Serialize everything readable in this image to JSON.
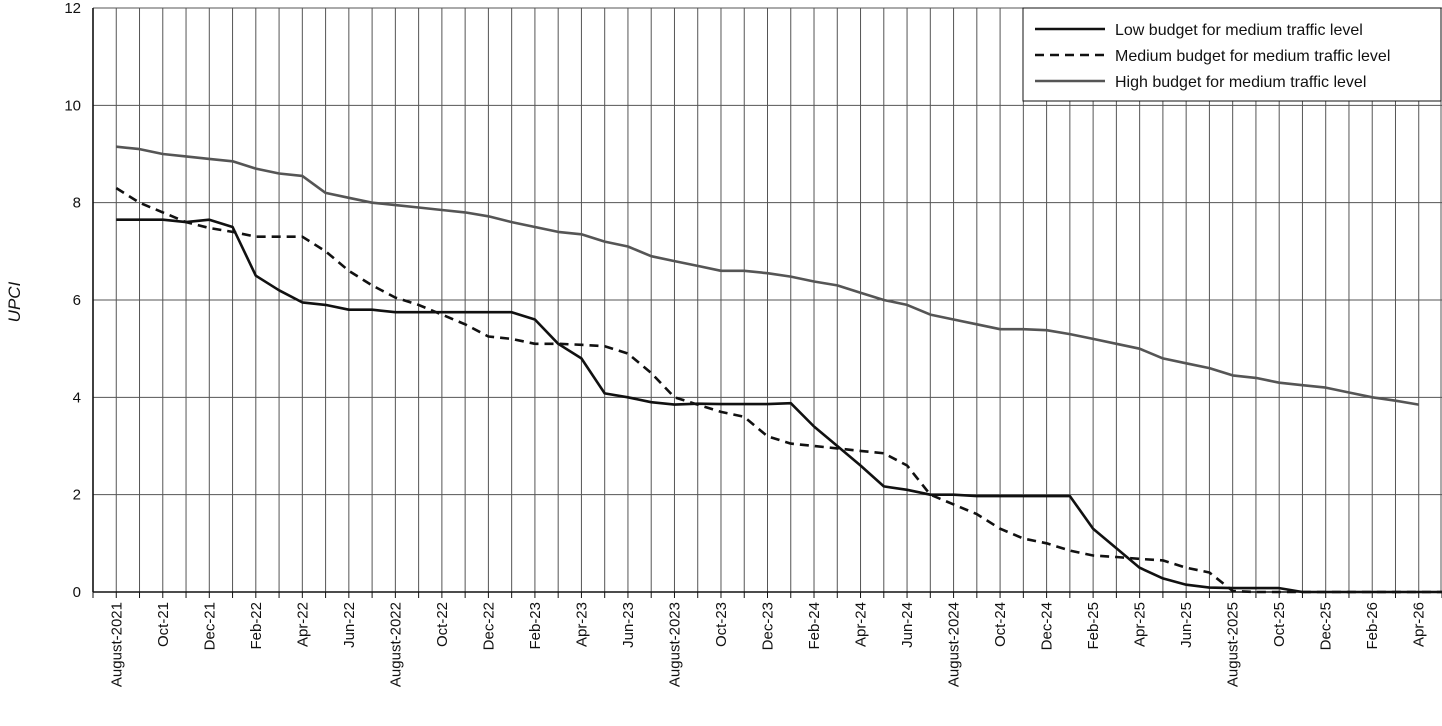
{
  "chart_data": {
    "type": "line",
    "title": "",
    "xlabel": "",
    "ylabel": "UPCI",
    "ylim": [
      0,
      12
    ],
    "yticks": [
      0,
      2,
      4,
      6,
      8,
      10,
      12
    ],
    "grid": true,
    "legend_position": "top-right",
    "x_tick_labels": [
      "August-2021",
      "Oct-21",
      "Dec-21",
      "Feb-22",
      "Apr-22",
      "Jun-22",
      "August-2022",
      "Oct-22",
      "Dec-22",
      "Feb-23",
      "Apr-23",
      "Jun-23",
      "August-2023",
      "Oct-23",
      "Dec-23",
      "Feb-24",
      "Apr-24",
      "Jun-24",
      "August-2024",
      "Oct-24",
      "Dec-24",
      "Feb-25",
      "Apr-25",
      "Jun-25",
      "August-2025",
      "Oct-25",
      "Dec-25",
      "Feb-26",
      "Apr-26"
    ],
    "x_months": [
      0,
      2,
      4,
      6,
      8,
      10,
      12,
      14,
      16,
      18,
      20,
      22,
      24,
      26,
      28,
      30,
      32,
      34,
      36,
      38,
      40,
      42,
      44,
      46,
      48,
      50,
      52,
      54,
      56
    ],
    "x_range_months": [
      -1,
      57
    ],
    "series": [
      {
        "name": "Low budget for medium traffic level",
        "style": "solid",
        "color": "#111111",
        "points": [
          [
            0,
            7.65
          ],
          [
            1,
            7.65
          ],
          [
            2,
            7.65
          ],
          [
            3,
            7.6
          ],
          [
            4,
            7.65
          ],
          [
            5,
            7.5
          ],
          [
            6,
            6.5
          ],
          [
            7,
            6.2
          ],
          [
            8,
            5.95
          ],
          [
            9,
            5.9
          ],
          [
            10,
            5.8
          ],
          [
            11,
            5.8
          ],
          [
            12,
            5.75
          ],
          [
            13,
            5.75
          ],
          [
            14,
            5.75
          ],
          [
            15,
            5.75
          ],
          [
            16,
            5.75
          ],
          [
            17,
            5.75
          ],
          [
            18,
            5.6
          ],
          [
            19,
            5.1
          ],
          [
            20,
            4.8
          ],
          [
            21,
            4.08
          ],
          [
            22,
            4.0
          ],
          [
            23,
            3.9
          ],
          [
            24,
            3.85
          ],
          [
            25,
            3.87
          ],
          [
            26,
            3.86
          ],
          [
            27,
            3.86
          ],
          [
            28,
            3.86
          ],
          [
            29,
            3.88
          ],
          [
            30,
            3.4
          ],
          [
            31,
            3.0
          ],
          [
            32,
            2.6
          ],
          [
            33,
            2.17
          ],
          [
            34,
            2.1
          ],
          [
            35,
            2.0
          ],
          [
            36,
            2.0
          ],
          [
            37,
            1.97
          ],
          [
            38,
            1.97
          ],
          [
            39,
            1.97
          ],
          [
            40,
            1.97
          ],
          [
            41,
            1.97
          ],
          [
            42,
            1.3
          ],
          [
            43,
            0.9
          ],
          [
            44,
            0.5
          ],
          [
            45,
            0.28
          ],
          [
            46,
            0.15
          ],
          [
            47,
            0.09
          ],
          [
            48,
            0.08
          ],
          [
            49,
            0.08
          ],
          [
            50,
            0.08
          ],
          [
            51,
            0.0
          ],
          [
            52,
            0.0
          ],
          [
            53,
            0.0
          ],
          [
            54,
            0.0
          ],
          [
            55,
            0.0
          ],
          [
            56,
            0.0
          ],
          [
            57,
            0.0
          ]
        ]
      },
      {
        "name": "Medium budget for medium traffic level",
        "style": "dashed",
        "color": "#111111",
        "points": [
          [
            0,
            8.3
          ],
          [
            1,
            8.0
          ],
          [
            2,
            7.8
          ],
          [
            3,
            7.6
          ],
          [
            4,
            7.48
          ],
          [
            5,
            7.4
          ],
          [
            6,
            7.3
          ],
          [
            7,
            7.3
          ],
          [
            8,
            7.3
          ],
          [
            9,
            7.0
          ],
          [
            10,
            6.6
          ],
          [
            11,
            6.3
          ],
          [
            12,
            6.05
          ],
          [
            13,
            5.9
          ],
          [
            14,
            5.7
          ],
          [
            15,
            5.5
          ],
          [
            16,
            5.25
          ],
          [
            17,
            5.2
          ],
          [
            18,
            5.1
          ],
          [
            19,
            5.1
          ],
          [
            20,
            5.08
          ],
          [
            21,
            5.05
          ],
          [
            22,
            4.9
          ],
          [
            23,
            4.5
          ],
          [
            24,
            4.0
          ],
          [
            25,
            3.85
          ],
          [
            26,
            3.7
          ],
          [
            27,
            3.6
          ],
          [
            28,
            3.2
          ],
          [
            29,
            3.05
          ],
          [
            30,
            3.0
          ],
          [
            31,
            2.95
          ],
          [
            32,
            2.9
          ],
          [
            33,
            2.85
          ],
          [
            34,
            2.6
          ],
          [
            35,
            2.0
          ],
          [
            36,
            1.8
          ],
          [
            37,
            1.6
          ],
          [
            38,
            1.3
          ],
          [
            39,
            1.1
          ],
          [
            40,
            1.0
          ],
          [
            41,
            0.85
          ],
          [
            42,
            0.75
          ],
          [
            43,
            0.72
          ],
          [
            44,
            0.68
          ],
          [
            45,
            0.65
          ],
          [
            46,
            0.5
          ],
          [
            47,
            0.4
          ],
          [
            48,
            0.02
          ],
          [
            49,
            0.0
          ],
          [
            50,
            0.0
          ],
          [
            51,
            0.0
          ],
          [
            52,
            0.0
          ],
          [
            53,
            0.0
          ],
          [
            54,
            0.0
          ],
          [
            55,
            0.0
          ],
          [
            56,
            0.0
          ],
          [
            57,
            0.0
          ]
        ]
      },
      {
        "name": "High budget for medium traffic level",
        "style": "solid",
        "color": "#555555",
        "points": [
          [
            0,
            9.15
          ],
          [
            1,
            9.1
          ],
          [
            2,
            9.0
          ],
          [
            3,
            8.95
          ],
          [
            4,
            8.9
          ],
          [
            5,
            8.85
          ],
          [
            6,
            8.7
          ],
          [
            7,
            8.6
          ],
          [
            8,
            8.55
          ],
          [
            9,
            8.2
          ],
          [
            10,
            8.1
          ],
          [
            11,
            8.0
          ],
          [
            12,
            7.95
          ],
          [
            13,
            7.9
          ],
          [
            14,
            7.85
          ],
          [
            15,
            7.8
          ],
          [
            16,
            7.72
          ],
          [
            17,
            7.6
          ],
          [
            18,
            7.5
          ],
          [
            19,
            7.4
          ],
          [
            20,
            7.35
          ],
          [
            21,
            7.2
          ],
          [
            22,
            7.1
          ],
          [
            23,
            6.9
          ],
          [
            24,
            6.8
          ],
          [
            25,
            6.7
          ],
          [
            26,
            6.6
          ],
          [
            27,
            6.6
          ],
          [
            28,
            6.55
          ],
          [
            29,
            6.48
          ],
          [
            30,
            6.38
          ],
          [
            31,
            6.3
          ],
          [
            32,
            6.15
          ],
          [
            33,
            6.0
          ],
          [
            34,
            5.9
          ],
          [
            35,
            5.7
          ],
          [
            36,
            5.6
          ],
          [
            37,
            5.5
          ],
          [
            38,
            5.4
          ],
          [
            39,
            5.4
          ],
          [
            40,
            5.38
          ],
          [
            41,
            5.3
          ],
          [
            42,
            5.2
          ],
          [
            43,
            5.1
          ],
          [
            44,
            5.0
          ],
          [
            45,
            4.8
          ],
          [
            46,
            4.7
          ],
          [
            47,
            4.6
          ],
          [
            48,
            4.45
          ],
          [
            49,
            4.4
          ],
          [
            50,
            4.3
          ],
          [
            51,
            4.25
          ],
          [
            52,
            4.2
          ],
          [
            53,
            4.1
          ],
          [
            54,
            4.0
          ],
          [
            55,
            3.93
          ],
          [
            56,
            3.85
          ]
        ]
      }
    ]
  }
}
